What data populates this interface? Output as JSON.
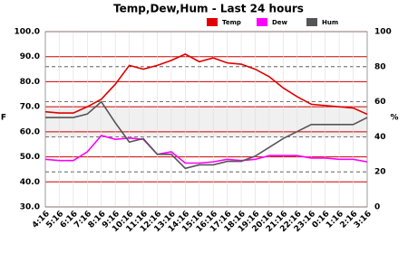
{
  "chart_data": {
    "type": "line",
    "title": "Temp,Dew,Hum - Last 24 hours",
    "y_label": "F",
    "y2_label": "%",
    "categories": [
      "4:16",
      "5:16",
      "6:16",
      "7:16",
      "8:16",
      "9:16",
      "10:16",
      "11:16",
      "12:16",
      "13:16",
      "14:16",
      "15:16",
      "16:16",
      "17:16",
      "18:16",
      "19:16",
      "20:16",
      "21:16",
      "22:16",
      "23:16",
      "0:16",
      "1:16",
      "2:16",
      "3:16"
    ],
    "series": [
      {
        "name": "Temp",
        "color": "#e00000",
        "values": [
          68,
          67.5,
          67.5,
          70,
          73,
          79,
          86.5,
          85,
          86.5,
          88.5,
          91,
          88,
          89.5,
          87.5,
          87,
          85,
          82,
          77.5,
          74,
          71,
          70.5,
          70,
          69.5,
          67
        ]
      },
      {
        "name": "Dew",
        "color": "#ff00ff",
        "values": [
          49,
          48.5,
          48.5,
          52,
          58.5,
          57,
          57.5,
          57,
          51,
          52,
          47.5,
          47.5,
          48,
          49,
          48.5,
          49,
          50.5,
          50.5,
          50.5,
          49.5,
          49.5,
          49,
          49,
          48
        ]
      },
      {
        "name": "Hum",
        "color": "#555555",
        "axis": "y2",
        "values": [
          51,
          51,
          51,
          53,
          60,
          48,
          37,
          39,
          30,
          30,
          22,
          24,
          24,
          26,
          26,
          29,
          34,
          39,
          43,
          47,
          47,
          47,
          47,
          51
        ]
      }
    ],
    "ylim": [
      30,
      100
    ],
    "yticks": [
      {
        "value": 30,
        "label": "30.0"
      },
      {
        "value": 40,
        "label": "40.0"
      },
      {
        "value": 50,
        "label": "50.0"
      },
      {
        "value": 60,
        "label": "60.0"
      },
      {
        "value": 70,
        "label": "70.0"
      },
      {
        "value": 80,
        "label": "80.0"
      },
      {
        "value": 90,
        "label": "90.0"
      },
      {
        "value": 100,
        "label": "100.0"
      }
    ],
    "y2lim": [
      0,
      100
    ],
    "y2ticks": [
      0,
      20,
      40,
      60,
      80,
      100
    ],
    "grid": true
  }
}
